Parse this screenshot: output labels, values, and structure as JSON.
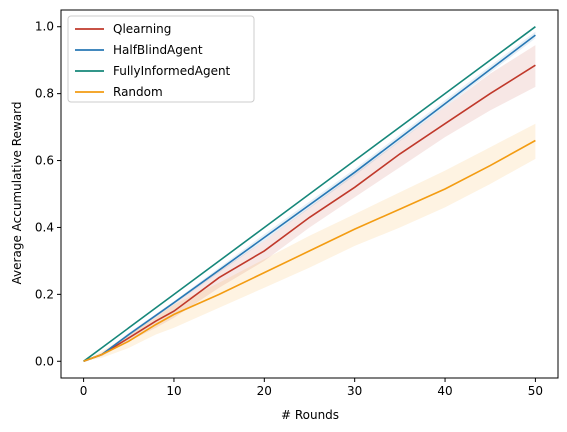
{
  "chart_data": {
    "type": "line",
    "title": "",
    "xlabel": "# Rounds",
    "ylabel": "Average Accumulative Reward",
    "xlim": [
      -2.5,
      52.5
    ],
    "ylim": [
      -0.05,
      1.05
    ],
    "xticks": [
      0,
      10,
      20,
      30,
      40,
      50
    ],
    "yticks": [
      0.0,
      0.2,
      0.4,
      0.6,
      0.8,
      1.0
    ],
    "ytick_labels": [
      "0.0",
      "0.2",
      "0.4",
      "0.6",
      "0.8",
      "1.0"
    ],
    "legend": {
      "placement": "top-left"
    },
    "grid": false,
    "series": [
      {
        "name": "Qlearning",
        "color": "#c0392b",
        "x": [
          0,
          2,
          5,
          8,
          10,
          15,
          20,
          25,
          30,
          35,
          40,
          45,
          50
        ],
        "y": [
          0.0,
          0.02,
          0.07,
          0.12,
          0.15,
          0.25,
          0.33,
          0.43,
          0.52,
          0.62,
          0.71,
          0.8,
          0.885
        ],
        "band_lower": [
          0.0,
          0.015,
          0.06,
          0.1,
          0.13,
          0.22,
          0.3,
          0.4,
          0.49,
          0.58,
          0.67,
          0.75,
          0.82
        ],
        "band_upper": [
          0.0,
          0.025,
          0.08,
          0.135,
          0.17,
          0.27,
          0.36,
          0.46,
          0.56,
          0.66,
          0.76,
          0.86,
          0.945
        ]
      },
      {
        "name": "HalfBlindAgent",
        "color": "#2878b5",
        "x": [
          0,
          2,
          5,
          10,
          20,
          30,
          40,
          50
        ],
        "y": [
          0.0,
          0.02,
          0.08,
          0.175,
          0.37,
          0.565,
          0.77,
          0.975
        ],
        "band_lower": [
          0.0,
          0.018,
          0.075,
          0.17,
          0.36,
          0.555,
          0.76,
          0.965
        ],
        "band_upper": [
          0.0,
          0.022,
          0.085,
          0.18,
          0.38,
          0.575,
          0.78,
          0.985
        ]
      },
      {
        "name": "FullyInformedAgent",
        "color": "#16877a",
        "x": [
          0,
          10,
          20,
          30,
          40,
          50
        ],
        "y": [
          0.0,
          0.2,
          0.4,
          0.6,
          0.8,
          1.0
        ]
      },
      {
        "name": "Random",
        "color": "#f39c12",
        "x": [
          0,
          2,
          5,
          8,
          10,
          15,
          20,
          25,
          30,
          35,
          40,
          45,
          50
        ],
        "y": [
          0.0,
          0.02,
          0.06,
          0.11,
          0.14,
          0.2,
          0.265,
          0.33,
          0.395,
          0.455,
          0.515,
          0.585,
          0.66
        ],
        "band_lower": [
          0.0,
          0.01,
          0.04,
          0.08,
          0.1,
          0.16,
          0.22,
          0.28,
          0.345,
          0.4,
          0.46,
          0.53,
          0.605
        ],
        "band_upper": [
          0.0,
          0.03,
          0.08,
          0.13,
          0.17,
          0.235,
          0.305,
          0.375,
          0.44,
          0.505,
          0.57,
          0.64,
          0.71
        ]
      }
    ]
  }
}
